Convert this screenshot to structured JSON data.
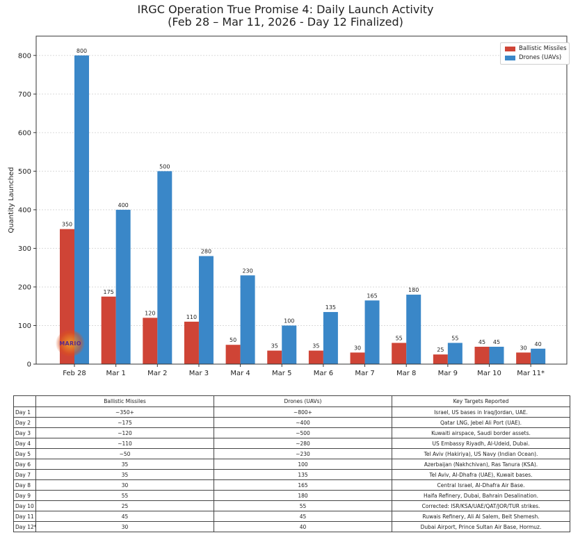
{
  "chart_data": {
    "type": "bar",
    "title": "IRGC Operation True Promise 4: Daily Launch Activity",
    "subtitle": "(Feb 28 – Mar 11, 2026 - Day 12 Finalized)",
    "xlabel": "",
    "ylabel": "Quantity Launched",
    "ylim": [
      0,
      850
    ],
    "yticks": [
      0,
      100,
      200,
      300,
      400,
      500,
      600,
      700,
      800
    ],
    "grid": true,
    "legend_position": "top-right",
    "categories": [
      "Feb 28",
      "Mar 1",
      "Mar 2",
      "Mar 3",
      "Mar 4",
      "Mar 5",
      "Mar 6",
      "Mar 7",
      "Mar 8",
      "Mar 9",
      "Mar 10",
      "Mar 11*"
    ],
    "series": [
      {
        "name": "Ballistic Missiles",
        "color": "#cf4436",
        "values": [
          350,
          175,
          120,
          110,
          50,
          35,
          35,
          30,
          55,
          25,
          45,
          30
        ]
      },
      {
        "name": "Drones (UAVs)",
        "color": "#3a87c8",
        "values": [
          800,
          400,
          500,
          280,
          230,
          100,
          135,
          165,
          180,
          55,
          45,
          40
        ]
      }
    ]
  },
  "watermark": {
    "text": "MARIO"
  },
  "table": {
    "headers": [
      "",
      "Ballistic Missiles",
      "Drones (UAVs)",
      "Key Targets Reported"
    ],
    "rows": [
      [
        "Day 1",
        "~350+",
        "~800+",
        "Israel, US bases in Iraq/Jordan, UAE."
      ],
      [
        "Day 2",
        "~175",
        "~400",
        "Qatar LNG, Jebel Ali Port (UAE)."
      ],
      [
        "Day 3",
        "~120",
        "~500",
        "Kuwaiti airspace, Saudi border assets."
      ],
      [
        "Day 4",
        "~110",
        "~280",
        "US Embassy Riyadh, Al-Udeid, Dubai."
      ],
      [
        "Day 5",
        "~50",
        "~230",
        "Tel Aviv (Hakiriya), US Navy (Indian Ocean)."
      ],
      [
        "Day 6",
        "35",
        "100",
        "Azerbaijan (Nakhchivan), Ras Tanura (KSA)."
      ],
      [
        "Day 7",
        "35",
        "135",
        "Tel Aviv, Al-Dhafra (UAE), Kuwait bases."
      ],
      [
        "Day 8",
        "30",
        "165",
        "Central Israel, Al-Dhafra Air Base."
      ],
      [
        "Day 9",
        "55",
        "180",
        "Haifa Refinery, Dubai, Bahrain Desalination."
      ],
      [
        "Day 10",
        "25",
        "55",
        "Corrected: ISR/KSA/UAE/QAT/JOR/TUR strikes."
      ],
      [
        "Day 11",
        "45",
        "45",
        "Ruwais Refinery, Ali Al Salem, Beit Shemesh."
      ],
      [
        "Day 12*",
        "30",
        "40",
        "Dubai Airport, Prince Sultan Air Base, Hormuz."
      ]
    ]
  }
}
